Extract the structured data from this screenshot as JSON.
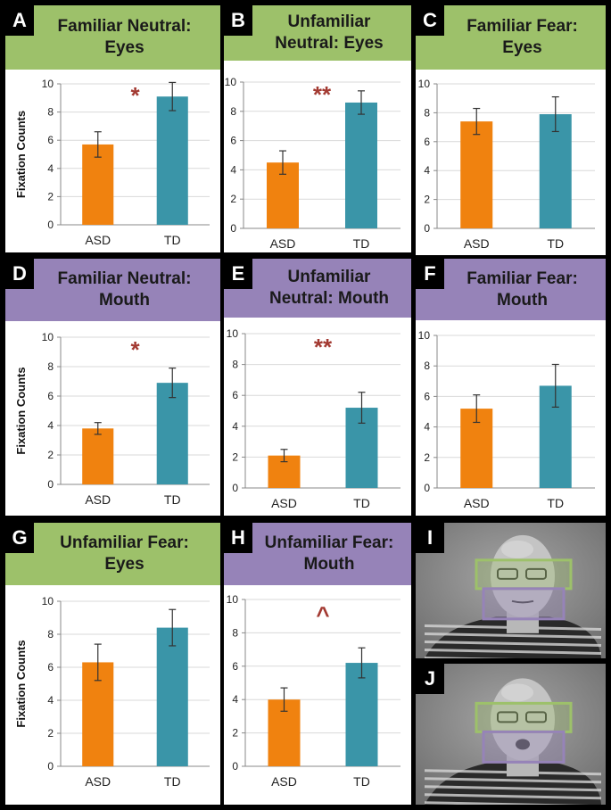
{
  "figure": {
    "panels": [
      {
        "letter": "A",
        "title_lines": [
          "Familiar Neutral:",
          "Eyes"
        ],
        "header_color": "green",
        "ylabel": "Fixation Counts",
        "significance": "*"
      },
      {
        "letter": "B",
        "title_lines": [
          "Unfamiliar",
          "Neutral: Eyes"
        ],
        "header_color": "green",
        "ylabel": "",
        "significance": "**"
      },
      {
        "letter": "C",
        "title_lines": [
          "Familiar Fear:",
          "Eyes"
        ],
        "header_color": "green",
        "ylabel": "",
        "significance": ""
      },
      {
        "letter": "D",
        "title_lines": [
          "Familiar Neutral:",
          "Mouth"
        ],
        "header_color": "purple",
        "ylabel": "Fixation Counts",
        "significance": "*"
      },
      {
        "letter": "E",
        "title_lines": [
          "Unfamiliar",
          "Neutral: Mouth"
        ],
        "header_color": "purple",
        "ylabel": "",
        "significance": "**"
      },
      {
        "letter": "F",
        "title_lines": [
          "Familiar Fear:",
          "Mouth"
        ],
        "header_color": "purple",
        "ylabel": "",
        "significance": ""
      },
      {
        "letter": "G",
        "title_lines": [
          "Unfamiliar Fear:",
          "Eyes"
        ],
        "header_color": "green",
        "ylabel": "Fixation Counts",
        "significance": ""
      },
      {
        "letter": "H",
        "title_lines": [
          "Unfamiliar Fear:",
          "Mouth"
        ],
        "header_color": "purple",
        "ylabel": "",
        "significance": "^"
      }
    ],
    "photos": [
      {
        "letter": "I",
        "description": "face-with-eye-and-mouth-regions-neutral"
      },
      {
        "letter": "J",
        "description": "face-with-eye-and-mouth-regions-fear"
      }
    ]
  },
  "colors": {
    "green": "#9dc16a",
    "purple": "#9683b8",
    "asd": "#f0820f",
    "td": "#3a95a8",
    "sig": "#a33a32",
    "grid": "#d9d9d9"
  },
  "chart_data": [
    {
      "type": "bar",
      "panel": "A",
      "categories": [
        "ASD",
        "TD"
      ],
      "values": [
        5.7,
        9.1
      ],
      "errors": [
        0.9,
        1.0
      ],
      "ylim": [
        0,
        10
      ],
      "yticks": [
        0,
        2,
        4,
        6,
        8,
        10
      ],
      "ylabel": "Fixation Counts"
    },
    {
      "type": "bar",
      "panel": "B",
      "categories": [
        "ASD",
        "TD"
      ],
      "values": [
        4.5,
        8.6
      ],
      "errors": [
        0.8,
        0.8
      ],
      "ylim": [
        0,
        10
      ],
      "yticks": [
        0,
        2,
        4,
        6,
        8,
        10
      ],
      "ylabel": ""
    },
    {
      "type": "bar",
      "panel": "C",
      "categories": [
        "ASD",
        "TD"
      ],
      "values": [
        7.4,
        7.9
      ],
      "errors": [
        0.9,
        1.2
      ],
      "ylim": [
        0,
        10
      ],
      "yticks": [
        0,
        2,
        4,
        6,
        8,
        10
      ],
      "ylabel": ""
    },
    {
      "type": "bar",
      "panel": "D",
      "categories": [
        "ASD",
        "TD"
      ],
      "values": [
        3.8,
        6.9
      ],
      "errors": [
        0.4,
        1.0
      ],
      "ylim": [
        0,
        10
      ],
      "yticks": [
        0,
        2,
        4,
        6,
        8,
        10
      ],
      "ylabel": "Fixation Counts"
    },
    {
      "type": "bar",
      "panel": "E",
      "categories": [
        "ASD",
        "TD"
      ],
      "values": [
        2.1,
        5.2
      ],
      "errors": [
        0.4,
        1.0
      ],
      "ylim": [
        0,
        10
      ],
      "yticks": [
        0,
        2,
        4,
        6,
        8,
        10
      ],
      "ylabel": ""
    },
    {
      "type": "bar",
      "panel": "F",
      "categories": [
        "ASD",
        "TD"
      ],
      "values": [
        5.2,
        6.7
      ],
      "errors": [
        0.9,
        1.4
      ],
      "ylim": [
        0,
        10
      ],
      "yticks": [
        0,
        2,
        4,
        6,
        8,
        10
      ],
      "ylabel": ""
    },
    {
      "type": "bar",
      "panel": "G",
      "categories": [
        "ASD",
        "TD"
      ],
      "values": [
        6.3,
        8.4
      ],
      "errors": [
        1.1,
        1.1
      ],
      "ylim": [
        0,
        10
      ],
      "yticks": [
        0,
        2,
        4,
        6,
        8,
        10
      ],
      "ylabel": "Fixation Counts"
    },
    {
      "type": "bar",
      "panel": "H",
      "categories": [
        "ASD",
        "TD"
      ],
      "values": [
        4.0,
        6.2
      ],
      "errors": [
        0.7,
        0.9
      ],
      "ylim": [
        0,
        10
      ],
      "yticks": [
        0,
        2,
        4,
        6,
        8,
        10
      ],
      "ylabel": ""
    }
  ]
}
